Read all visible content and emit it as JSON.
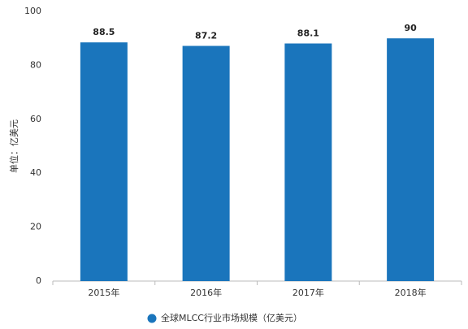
{
  "chart_data": {
    "type": "bar",
    "categories": [
      "2015年",
      "2016年",
      "2017年",
      "2018年"
    ],
    "values": [
      88.5,
      87.2,
      88.1,
      90
    ],
    "color": "#1a75bc",
    "series_name": "全球MLCC行业市场规模（亿美元）",
    "y_label": "单位：亿美元",
    "ylim": [
      0,
      100
    ],
    "yticks": [
      0,
      20,
      40,
      60,
      80,
      100
    ],
    "grid": false
  }
}
